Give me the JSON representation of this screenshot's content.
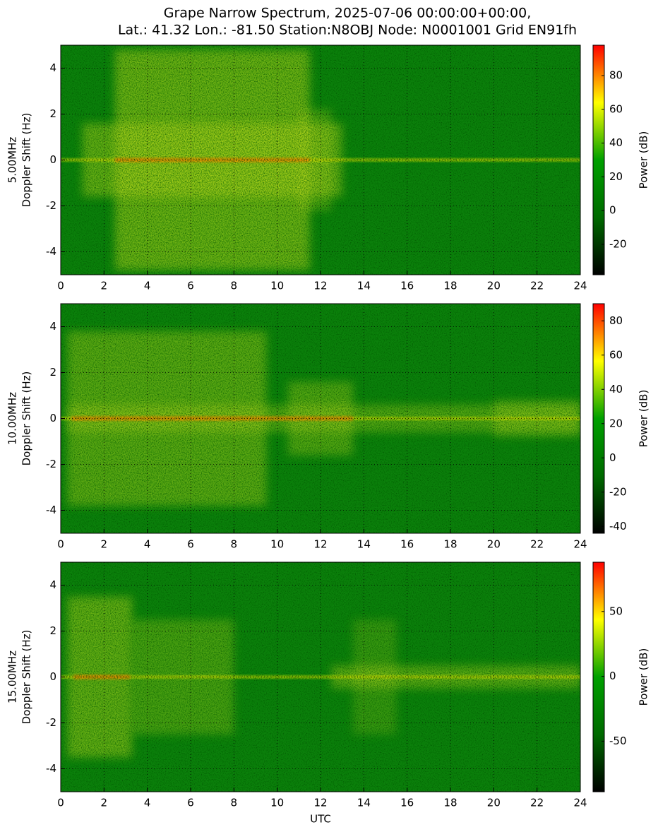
{
  "chart_data": [
    {
      "type": "heatmap",
      "title": [
        "Grape Narrow Spectrum, 2025-07-06 00:00:00+00:00,",
        "Lat.: 41.32 Lon.: -81.50 Station:N8OBJ Node: N0001001 Grid EN91fh"
      ],
      "ylabel": [
        "5.00MHz",
        "Doppler Shift (Hz)"
      ],
      "xlim": [
        0,
        24
      ],
      "xticks": [
        0,
        2,
        4,
        6,
        8,
        10,
        12,
        14,
        16,
        18,
        20,
        22,
        24
      ],
      "ylim": [
        -5,
        5
      ],
      "yticks": [
        -4,
        -2,
        0,
        2,
        4
      ],
      "grid": true,
      "colorbar_label": "Power (dB)",
      "clim": [
        -38,
        98
      ],
      "cticks": [
        -20,
        0,
        20,
        40,
        60,
        80
      ],
      "colormap": [
        "#000000",
        "#006a00",
        "#00a000",
        "#ffff00",
        "#ff0000"
      ]
    },
    {
      "type": "heatmap",
      "ylabel": [
        "10.00MHz",
        "Doppler Shift (Hz)"
      ],
      "xlim": [
        0,
        24
      ],
      "xticks": [
        0,
        2,
        4,
        6,
        8,
        10,
        12,
        14,
        16,
        18,
        20,
        22,
        24
      ],
      "ylim": [
        -5,
        5
      ],
      "yticks": [
        -4,
        -2,
        0,
        2,
        4
      ],
      "grid": true,
      "colorbar_label": "Power (dB)",
      "clim": [
        -44,
        90
      ],
      "cticks": [
        -40,
        -20,
        0,
        20,
        40,
        60,
        80
      ],
      "colormap": [
        "#000000",
        "#006a00",
        "#00a000",
        "#ffff00",
        "#ff0000"
      ]
    },
    {
      "type": "heatmap",
      "xlabel": "UTC",
      "ylabel": [
        "15.00MHz",
        "Doppler Shift (Hz)"
      ],
      "xlim": [
        0,
        24
      ],
      "xticks": [
        0,
        2,
        4,
        6,
        8,
        10,
        12,
        14,
        16,
        18,
        20,
        22,
        24
      ],
      "ylim": [
        -5,
        5
      ],
      "yticks": [
        -4,
        -2,
        0,
        2,
        4
      ],
      "grid": true,
      "colorbar_label": "Power (dB)",
      "clim": [
        -89,
        88
      ],
      "cticks": [
        -50,
        0,
        50
      ],
      "colormap": [
        "#000000",
        "#006a00",
        "#00a000",
        "#ffff00",
        "#ff0000"
      ]
    }
  ]
}
